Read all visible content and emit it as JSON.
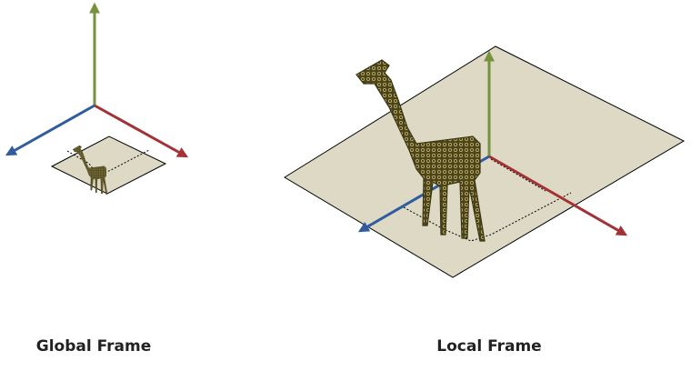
{
  "captions": {
    "global": "Global Frame",
    "local": "Local Frame"
  },
  "colors": {
    "y_axis": "#76923c",
    "x_axis": "#a33237",
    "z_axis": "#2e5c9e",
    "plane_fill": "#ddd9c4",
    "plane_stroke": "#000000",
    "giraffe_fill": "#4a4420",
    "giraffe_pattern": "#c8b45a"
  },
  "icons": {
    "giraffe": "giraffe-icon"
  }
}
